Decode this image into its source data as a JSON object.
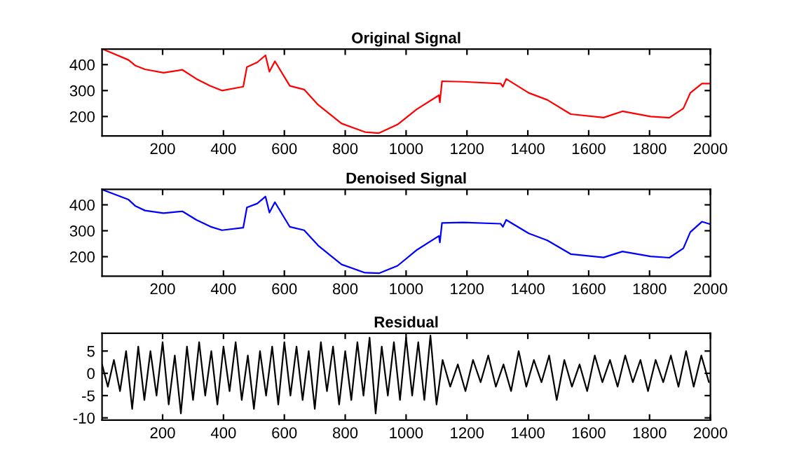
{
  "chart_data": [
    {
      "type": "line",
      "title": "Original Signal",
      "xlim": [
        1,
        2000
      ],
      "xticks": [
        200,
        400,
        600,
        800,
        1000,
        1200,
        1400,
        1600,
        1800,
        2000
      ],
      "ylim": [
        125,
        460
      ],
      "yticks": [
        200,
        300,
        400
      ],
      "grid": false,
      "series": [
        {
          "color": "#ff0000",
          "x": [
            3,
            88,
            111,
            142,
            203,
            265,
            311,
            357,
            395,
            465,
            477,
            511,
            538,
            551,
            569,
            618,
            665,
            711,
            788,
            865,
            911,
            972,
            1034,
            1108,
            1111,
            1118,
            1188,
            1311,
            1318,
            1329,
            1403,
            1464,
            1541,
            1649,
            1711,
            1803,
            1865,
            1911,
            1934,
            1972,
            2000
          ],
          "values": [
            460,
            418,
            396,
            382,
            369,
            380,
            345,
            318,
            300,
            315,
            391,
            409,
            436,
            373,
            413,
            318,
            304,
            245,
            173,
            140,
            136,
            169,
            227,
            282,
            255,
            336,
            334,
            327,
            315,
            345,
            291,
            264,
            209,
            196,
            220,
            200,
            195,
            231,
            291,
            327,
            327
          ]
        }
      ]
    },
    {
      "type": "line",
      "title": "Denoised Signal",
      "xlim": [
        1,
        2000
      ],
      "xticks": [
        200,
        400,
        600,
        800,
        1000,
        1200,
        1400,
        1600,
        1800,
        2000
      ],
      "ylim": [
        125,
        460
      ],
      "yticks": [
        200,
        300,
        400
      ],
      "grid": false,
      "series": [
        {
          "color": "#0000ff",
          "x": [
            3,
            88,
            111,
            142,
            203,
            265,
            311,
            357,
            395,
            465,
            477,
            511,
            538,
            551,
            569,
            618,
            665,
            711,
            788,
            865,
            911,
            972,
            1034,
            1108,
            1111,
            1118,
            1188,
            1311,
            1318,
            1329,
            1403,
            1464,
            1541,
            1649,
            1711,
            1803,
            1865,
            1911,
            1934,
            1972,
            2000
          ],
          "values": [
            458,
            420,
            395,
            378,
            368,
            375,
            342,
            316,
            302,
            312,
            390,
            405,
            432,
            370,
            410,
            315,
            302,
            243,
            170,
            138,
            136,
            165,
            225,
            280,
            255,
            330,
            332,
            327,
            315,
            342,
            290,
            263,
            210,
            197,
            220,
            201,
            196,
            232,
            295,
            335,
            325
          ]
        }
      ]
    },
    {
      "type": "line",
      "title": "Residual",
      "xlim": [
        1,
        2000
      ],
      "xticks": [
        200,
        400,
        600,
        800,
        1000,
        1200,
        1400,
        1600,
        1800,
        2000
      ],
      "ylim": [
        -10.5,
        9
      ],
      "yticks": [
        -10,
        -5,
        0,
        5
      ],
      "grid": false,
      "series": [
        {
          "color": "#000000",
          "x": [
            1,
            20,
            40,
            60,
            80,
            100,
            120,
            140,
            160,
            180,
            200,
            220,
            240,
            260,
            280,
            300,
            320,
            340,
            360,
            380,
            400,
            420,
            440,
            460,
            480,
            500,
            520,
            540,
            560,
            580,
            600,
            620,
            640,
            660,
            680,
            700,
            720,
            740,
            760,
            780,
            800,
            820,
            840,
            860,
            880,
            900,
            920,
            940,
            960,
            980,
            1000,
            1020,
            1040,
            1060,
            1080,
            1100,
            1120,
            1145,
            1170,
            1195,
            1220,
            1245,
            1270,
            1295,
            1320,
            1345,
            1370,
            1395,
            1420,
            1445,
            1470,
            1495,
            1520,
            1545,
            1570,
            1595,
            1620,
            1645,
            1670,
            1695,
            1720,
            1745,
            1770,
            1795,
            1820,
            1845,
            1870,
            1895,
            1920,
            1945,
            1970,
            1995
          ],
          "values": [
            2,
            -3,
            3,
            -4,
            5,
            -8,
            6,
            -6,
            5,
            -5,
            7,
            -7,
            4,
            -9,
            6,
            -6,
            7,
            -5,
            5,
            -7,
            6,
            -4,
            7,
            -6,
            4,
            -8,
            5,
            -5,
            6,
            -7,
            7,
            -5,
            6,
            -6,
            5,
            -8,
            7,
            -4,
            6,
            -7,
            5,
            -6,
            7,
            -5,
            8,
            -9,
            6,
            -5,
            7,
            -6,
            8,
            -5,
            7,
            -6,
            8.5,
            -7,
            3,
            -3,
            2,
            -4,
            3,
            -2,
            4,
            -3,
            2,
            -4,
            5,
            -3,
            3,
            -2,
            4,
            -6,
            3,
            -3,
            2,
            -4,
            4,
            -2,
            3,
            -3,
            4,
            -2,
            3,
            -4,
            3,
            -2,
            4,
            -3,
            5,
            -3,
            4,
            -2
          ]
        }
      ]
    }
  ]
}
